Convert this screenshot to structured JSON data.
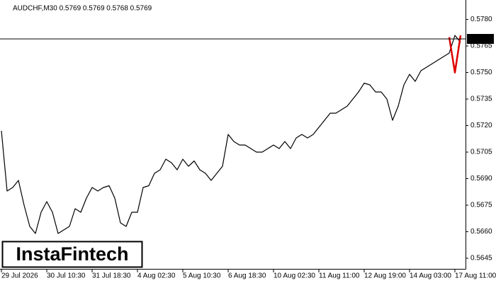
{
  "chart_data": {
    "type": "line",
    "title": "AUDCHF,M30  0.5769 0.5769 0.5768 0.5769",
    "logo": "InstaFintech",
    "price_line": 0.5769,
    "xlim": [
      0,
      81
    ],
    "xticks": [
      {
        "value": 0,
        "label": "29 Jul 2026"
      },
      {
        "value": 8,
        "label": "30 Jul 10:30"
      },
      {
        "value": 16,
        "label": "31 Jul 18:30"
      },
      {
        "value": 24,
        "label": "4 Aug 02:30"
      },
      {
        "value": 32,
        "label": "5 Aug 10:30"
      },
      {
        "value": 40,
        "label": "6 Aug 18:30"
      },
      {
        "value": 48,
        "label": "10 Aug 02:30"
      },
      {
        "value": 56,
        "label": "11 Aug 11:00"
      },
      {
        "value": 64,
        "label": "12 Aug 19:00"
      },
      {
        "value": 72,
        "label": "14 Aug 03:00"
      },
      {
        "value": 80,
        "label": "17 Aug 11:00"
      }
    ],
    "ylim": [
      0.5639,
      0.5791
    ],
    "yticks": [
      0.5645,
      {
        "value": 0.566,
        "label": "0.5660"
      },
      0.5675,
      {
        "value": 0.569,
        "label": "0.5690"
      },
      0.5705,
      {
        "value": 0.572,
        "label": "0.5720"
      },
      0.5735,
      {
        "value": 0.575,
        "label": "0.5750"
      },
      0.5765,
      {
        "value": 0.578,
        "label": "0.5780"
      }
    ],
    "series": [
      {
        "color": "#000000",
        "values": [
          0.5717,
          0.5683,
          0.5685,
          0.5689,
          0.5675,
          0.5663,
          0.5659,
          0.5671,
          0.5677,
          0.5671,
          0.5659,
          0.5661,
          0.5663,
          0.5673,
          0.5671,
          0.5679,
          0.5685,
          0.5683,
          0.5685,
          0.5686,
          0.5679,
          0.5665,
          0.5663,
          0.5671,
          0.5671,
          0.5685,
          0.5686,
          0.5693,
          0.5695,
          0.5701,
          0.5699,
          0.5695,
          0.5701,
          0.5697,
          0.57,
          0.5695,
          0.5693,
          0.5689,
          0.5693,
          0.5697,
          0.5715,
          0.5711,
          0.5709,
          0.5709,
          0.5707,
          0.5705,
          0.5705,
          0.5707,
          0.5709,
          0.5707,
          0.5711,
          0.5707,
          0.5713,
          0.5715,
          0.5713,
          0.5715,
          0.5719,
          0.5723,
          0.5727,
          0.5727,
          0.5729,
          0.5731,
          0.5735,
          0.5739,
          0.5744,
          0.5743,
          0.5739,
          0.5739,
          0.5735,
          0.5723,
          0.5731,
          0.5743,
          0.5749,
          0.5745,
          0.5751,
          0.5753,
          0.5755,
          0.5757,
          0.5759,
          0.5761,
          0.5771,
          0.5767
        ]
      },
      {
        "color": "#e00000",
        "values": [
          null,
          null,
          null,
          null,
          null,
          null,
          null,
          null,
          null,
          null,
          null,
          null,
          null,
          null,
          null,
          null,
          null,
          null,
          null,
          null,
          null,
          null,
          null,
          null,
          null,
          null,
          null,
          null,
          null,
          null,
          null,
          null,
          null,
          null,
          null,
          null,
          null,
          null,
          null,
          null,
          null,
          null,
          null,
          null,
          null,
          null,
          null,
          null,
          null,
          null,
          null,
          null,
          null,
          null,
          null,
          null,
          null,
          null,
          null,
          null,
          null,
          null,
          null,
          null,
          null,
          null,
          null,
          null,
          null,
          null,
          null,
          null,
          null,
          null,
          null,
          null,
          null,
          null,
          null,
          0.577,
          0.575,
          0.5771
        ]
      }
    ]
  }
}
